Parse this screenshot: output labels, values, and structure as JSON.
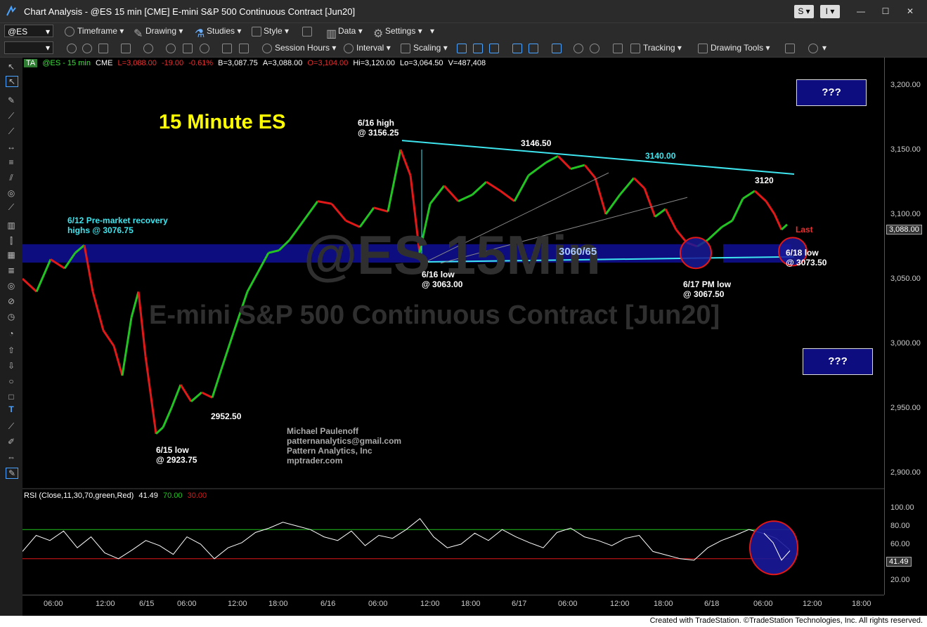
{
  "window": {
    "title": "Chart Analysis - @ES 15 min [CME] E-mini S&P 500 Continuous Contract [Jun20]",
    "btn_s": "S",
    "btn_i": "I"
  },
  "toolbar1": {
    "symbol": "@ES",
    "timeframe": "Timeframe",
    "drawing": "Drawing",
    "studies": "Studies",
    "style": "Style",
    "data": "Data",
    "settings": "Settings"
  },
  "toolbar2": {
    "session_hours": "Session Hours",
    "interval": "Interval",
    "scaling": "Scaling",
    "tracking": "Tracking",
    "drawing_tools": "Drawing Tools"
  },
  "infobar": {
    "ta": "TA",
    "symbol": "@ES - 15 min",
    "exchange": "CME",
    "last": "L=3,088.00",
    "chg": "-19.00",
    "pct": "-0.61%",
    "bid": "B=3,087.75",
    "ask": "A=3,088.00",
    "open": "O=3,104.00",
    "high": "Hi=3,120.00",
    "low": "Lo=3,064.50",
    "volume": "V=487,408"
  },
  "watermark": {
    "symbol": "@ES 15Min",
    "name": "E-mini S&P 500 Continuous Contract [Jun20]"
  },
  "annotations": {
    "title": "15 Minute ES",
    "high616": [
      "6/16 high",
      "@ 3156.25"
    ],
    "peak": "3146.50",
    "line3140": "3140.00",
    "p3120": "3120",
    "premarket": [
      "6/12 Pre-market recovery",
      "highs @ 3076.75"
    ],
    "zone": "3060/65",
    "low616": [
      "6/16 low",
      "@ 3063.00"
    ],
    "low617": [
      "6/17 PM low",
      "@ 3067.50"
    ],
    "low618": [
      "6/18 low",
      "@ 3073.50"
    ],
    "low615": [
      "6/15 low",
      "@ 2923.75"
    ],
    "p2952": "2952.50",
    "author": [
      "Michael Paulenoff",
      "patternanalytics@gmail.com",
      "Pattern Analytics, Inc",
      "mptrader.com"
    ],
    "q_top": "???",
    "q_bottom": "???",
    "last": "Last"
  },
  "rsi": {
    "label": "RSI (Close,11,30,70,green,Red)",
    "value": "41.49",
    "ob": "70.00",
    "os": "30.00"
  },
  "price_axis": {
    "labels": [
      "3,200.00",
      "3,150.00",
      "3,100.00",
      "3,050.00",
      "3,000.00",
      "2,950.00",
      "2,900.00"
    ],
    "current": "3,088.00"
  },
  "rsi_axis": {
    "labels": [
      "100.00",
      "80.00",
      "60.00",
      "20.00"
    ],
    "current": "41.49"
  },
  "time_axis": [
    "06:00",
    "12:00",
    "6/15",
    "06:00",
    "12:00",
    "18:00",
    "6/16",
    "06:00",
    "12:00",
    "18:00",
    "6/17",
    "06:00",
    "12:00",
    "18:00",
    "6/18",
    "06:00",
    "12:00",
    "18:00"
  ],
  "footer": "Created with TradeStation. ©TradeStation Technologies, Inc. All rights reserved.",
  "colors": {
    "up": "#22c322",
    "down": "#e01818",
    "cyan": "#3ee5ee",
    "zone": "#0d0d80",
    "title_yellow": "#ffff00"
  }
}
